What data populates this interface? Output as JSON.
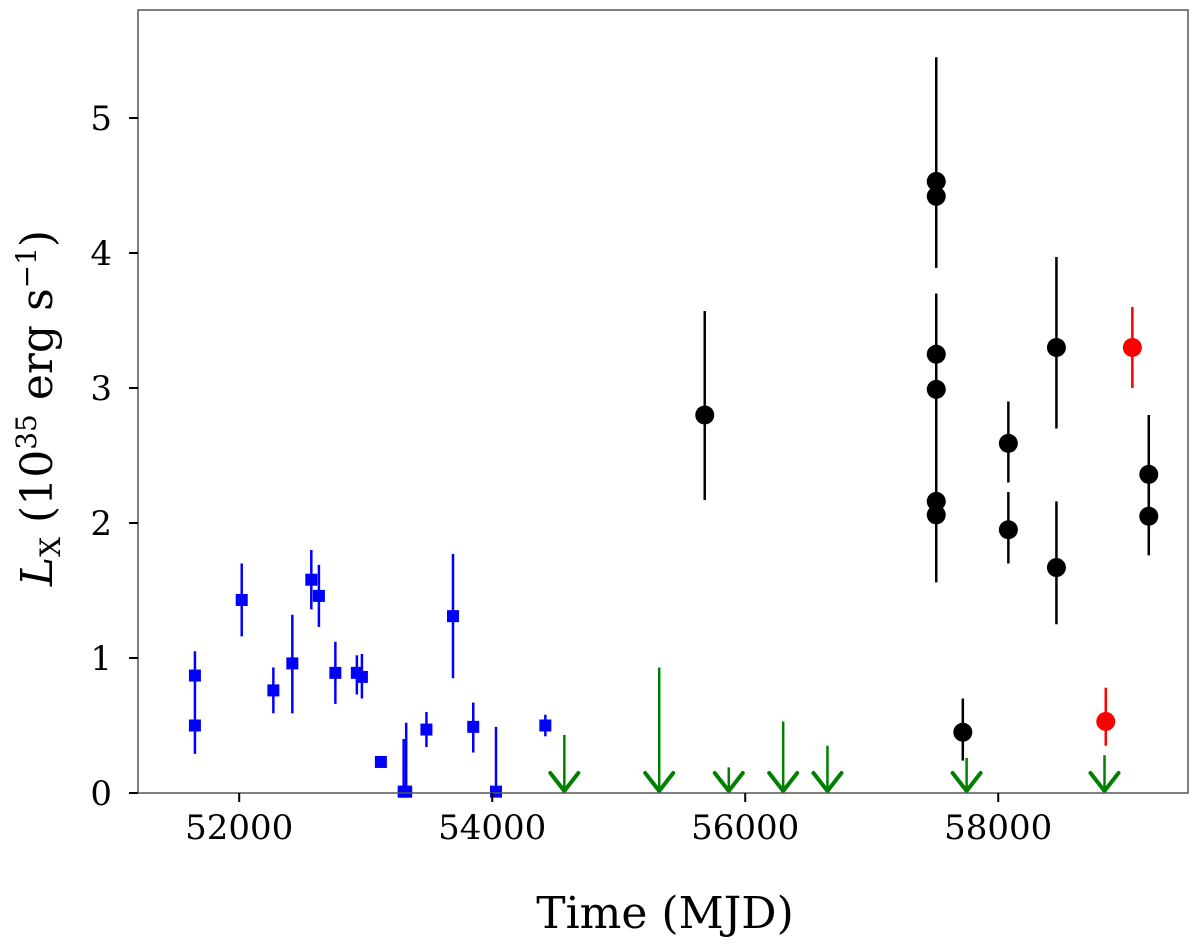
{
  "chart_data": {
    "type": "scatter",
    "title": "",
    "xlabel": "Time (MJD)",
    "ylabel": {
      "symbol": "L",
      "symbol_sub": "X",
      "unit_prefix": "(10",
      "unit_exp": "35",
      "unit_mid": " erg s",
      "unit_exp2": "−1",
      "unit_suffix": ")"
    },
    "xlim": [
      51200,
      59500
    ],
    "ylim": [
      0,
      5.8
    ],
    "xticks": [
      52000,
      54000,
      56000,
      58000
    ],
    "xtick_labels": [
      "52000",
      "54000",
      "56000",
      "58000"
    ],
    "yticks": [
      0,
      1,
      2,
      3,
      4,
      5
    ],
    "ytick_labels": [
      "0",
      "1",
      "2",
      "3",
      "4",
      "5"
    ],
    "grid": false,
    "series": [
      {
        "name": "blue squares",
        "marker": "square",
        "color": "#0000ff",
        "points": [
          {
            "x": 51650,
            "y": 0.87,
            "lo": 0.67,
            "hi": 1.05
          },
          {
            "x": 51650,
            "y": 0.5,
            "lo": 0.29,
            "hi": 0.67
          },
          {
            "x": 52020,
            "y": 1.43,
            "lo": 1.16,
            "hi": 1.7
          },
          {
            "x": 52270,
            "y": 0.76,
            "lo": 0.59,
            "hi": 0.93
          },
          {
            "x": 52420,
            "y": 0.96,
            "lo": 0.59,
            "hi": 1.32
          },
          {
            "x": 52570,
            "y": 1.58,
            "lo": 1.36,
            "hi": 1.8
          },
          {
            "x": 52630,
            "y": 1.46,
            "lo": 1.23,
            "hi": 1.69
          },
          {
            "x": 52760,
            "y": 0.89,
            "lo": 0.66,
            "hi": 1.12
          },
          {
            "x": 52930,
            "y": 0.89,
            "lo": 0.73,
            "hi": 1.02
          },
          {
            "x": 52970,
            "y": 0.86,
            "lo": 0.7,
            "hi": 1.03
          },
          {
            "x": 53120,
            "y": 0.23,
            "lo": 0.2,
            "hi": 0.26
          },
          {
            "x": 53300,
            "y": 0.01,
            "lo": 0.0,
            "hi": 0.4
          },
          {
            "x": 53320,
            "y": 0.01,
            "lo": 0.0,
            "hi": 0.52
          },
          {
            "x": 53480,
            "y": 0.47,
            "lo": 0.34,
            "hi": 0.6
          },
          {
            "x": 53690,
            "y": 1.31,
            "lo": 0.85,
            "hi": 1.77
          },
          {
            "x": 53850,
            "y": 0.49,
            "lo": 0.3,
            "hi": 0.67
          },
          {
            "x": 54030,
            "y": 0.01,
            "lo": 0.0,
            "hi": 0.49
          },
          {
            "x": 54420,
            "y": 0.5,
            "lo": 0.42,
            "hi": 0.58
          }
        ]
      },
      {
        "name": "black circles",
        "marker": "circle",
        "color": "#000000",
        "points": [
          {
            "x": 55680,
            "y": 2.8,
            "lo": 2.17,
            "hi": 3.57
          },
          {
            "x": 57510,
            "y": 4.53,
            "lo": 4.05,
            "hi": 5.45
          },
          {
            "x": 57510,
            "y": 4.42,
            "lo": 3.89,
            "hi": 5.0
          },
          {
            "x": 57510,
            "y": 3.25,
            "lo": 2.85,
            "hi": 3.7
          },
          {
            "x": 57510,
            "y": 2.99,
            "lo": 2.5,
            "hi": 3.45
          },
          {
            "x": 57510,
            "y": 2.16,
            "lo": 1.7,
            "hi": 2.6
          },
          {
            "x": 57510,
            "y": 2.06,
            "lo": 1.56,
            "hi": 2.55
          },
          {
            "x": 57720,
            "y": 0.45,
            "lo": 0.24,
            "hi": 0.7
          },
          {
            "x": 58080,
            "y": 2.59,
            "lo": 2.3,
            "hi": 2.9
          },
          {
            "x": 58080,
            "y": 1.95,
            "lo": 1.7,
            "hi": 2.23
          },
          {
            "x": 58460,
            "y": 3.3,
            "lo": 2.7,
            "hi": 3.97
          },
          {
            "x": 58460,
            "y": 1.67,
            "lo": 1.25,
            "hi": 2.16
          },
          {
            "x": 59190,
            "y": 2.36,
            "lo": 1.95,
            "hi": 2.8
          },
          {
            "x": 59190,
            "y": 2.05,
            "lo": 1.76,
            "hi": 2.4
          }
        ]
      },
      {
        "name": "red circles",
        "marker": "circle",
        "color": "#ff0000",
        "points": [
          {
            "x": 59060,
            "y": 3.3,
            "lo": 3.0,
            "hi": 3.6
          },
          {
            "x": 58850,
            "y": 0.53,
            "lo": 0.35,
            "hi": 0.78
          }
        ]
      },
      {
        "name": "upper limits",
        "marker": "arrow-down",
        "color": "#008000",
        "points": [
          {
            "x": 54570,
            "y": 0.43
          },
          {
            "x": 55320,
            "y": 0.93
          },
          {
            "x": 55870,
            "y": 0.19
          },
          {
            "x": 56300,
            "y": 0.53
          },
          {
            "x": 56650,
            "y": 0.35
          },
          {
            "x": 57750,
            "y": 0.26
          },
          {
            "x": 58840,
            "y": 0.28
          }
        ]
      }
    ]
  }
}
